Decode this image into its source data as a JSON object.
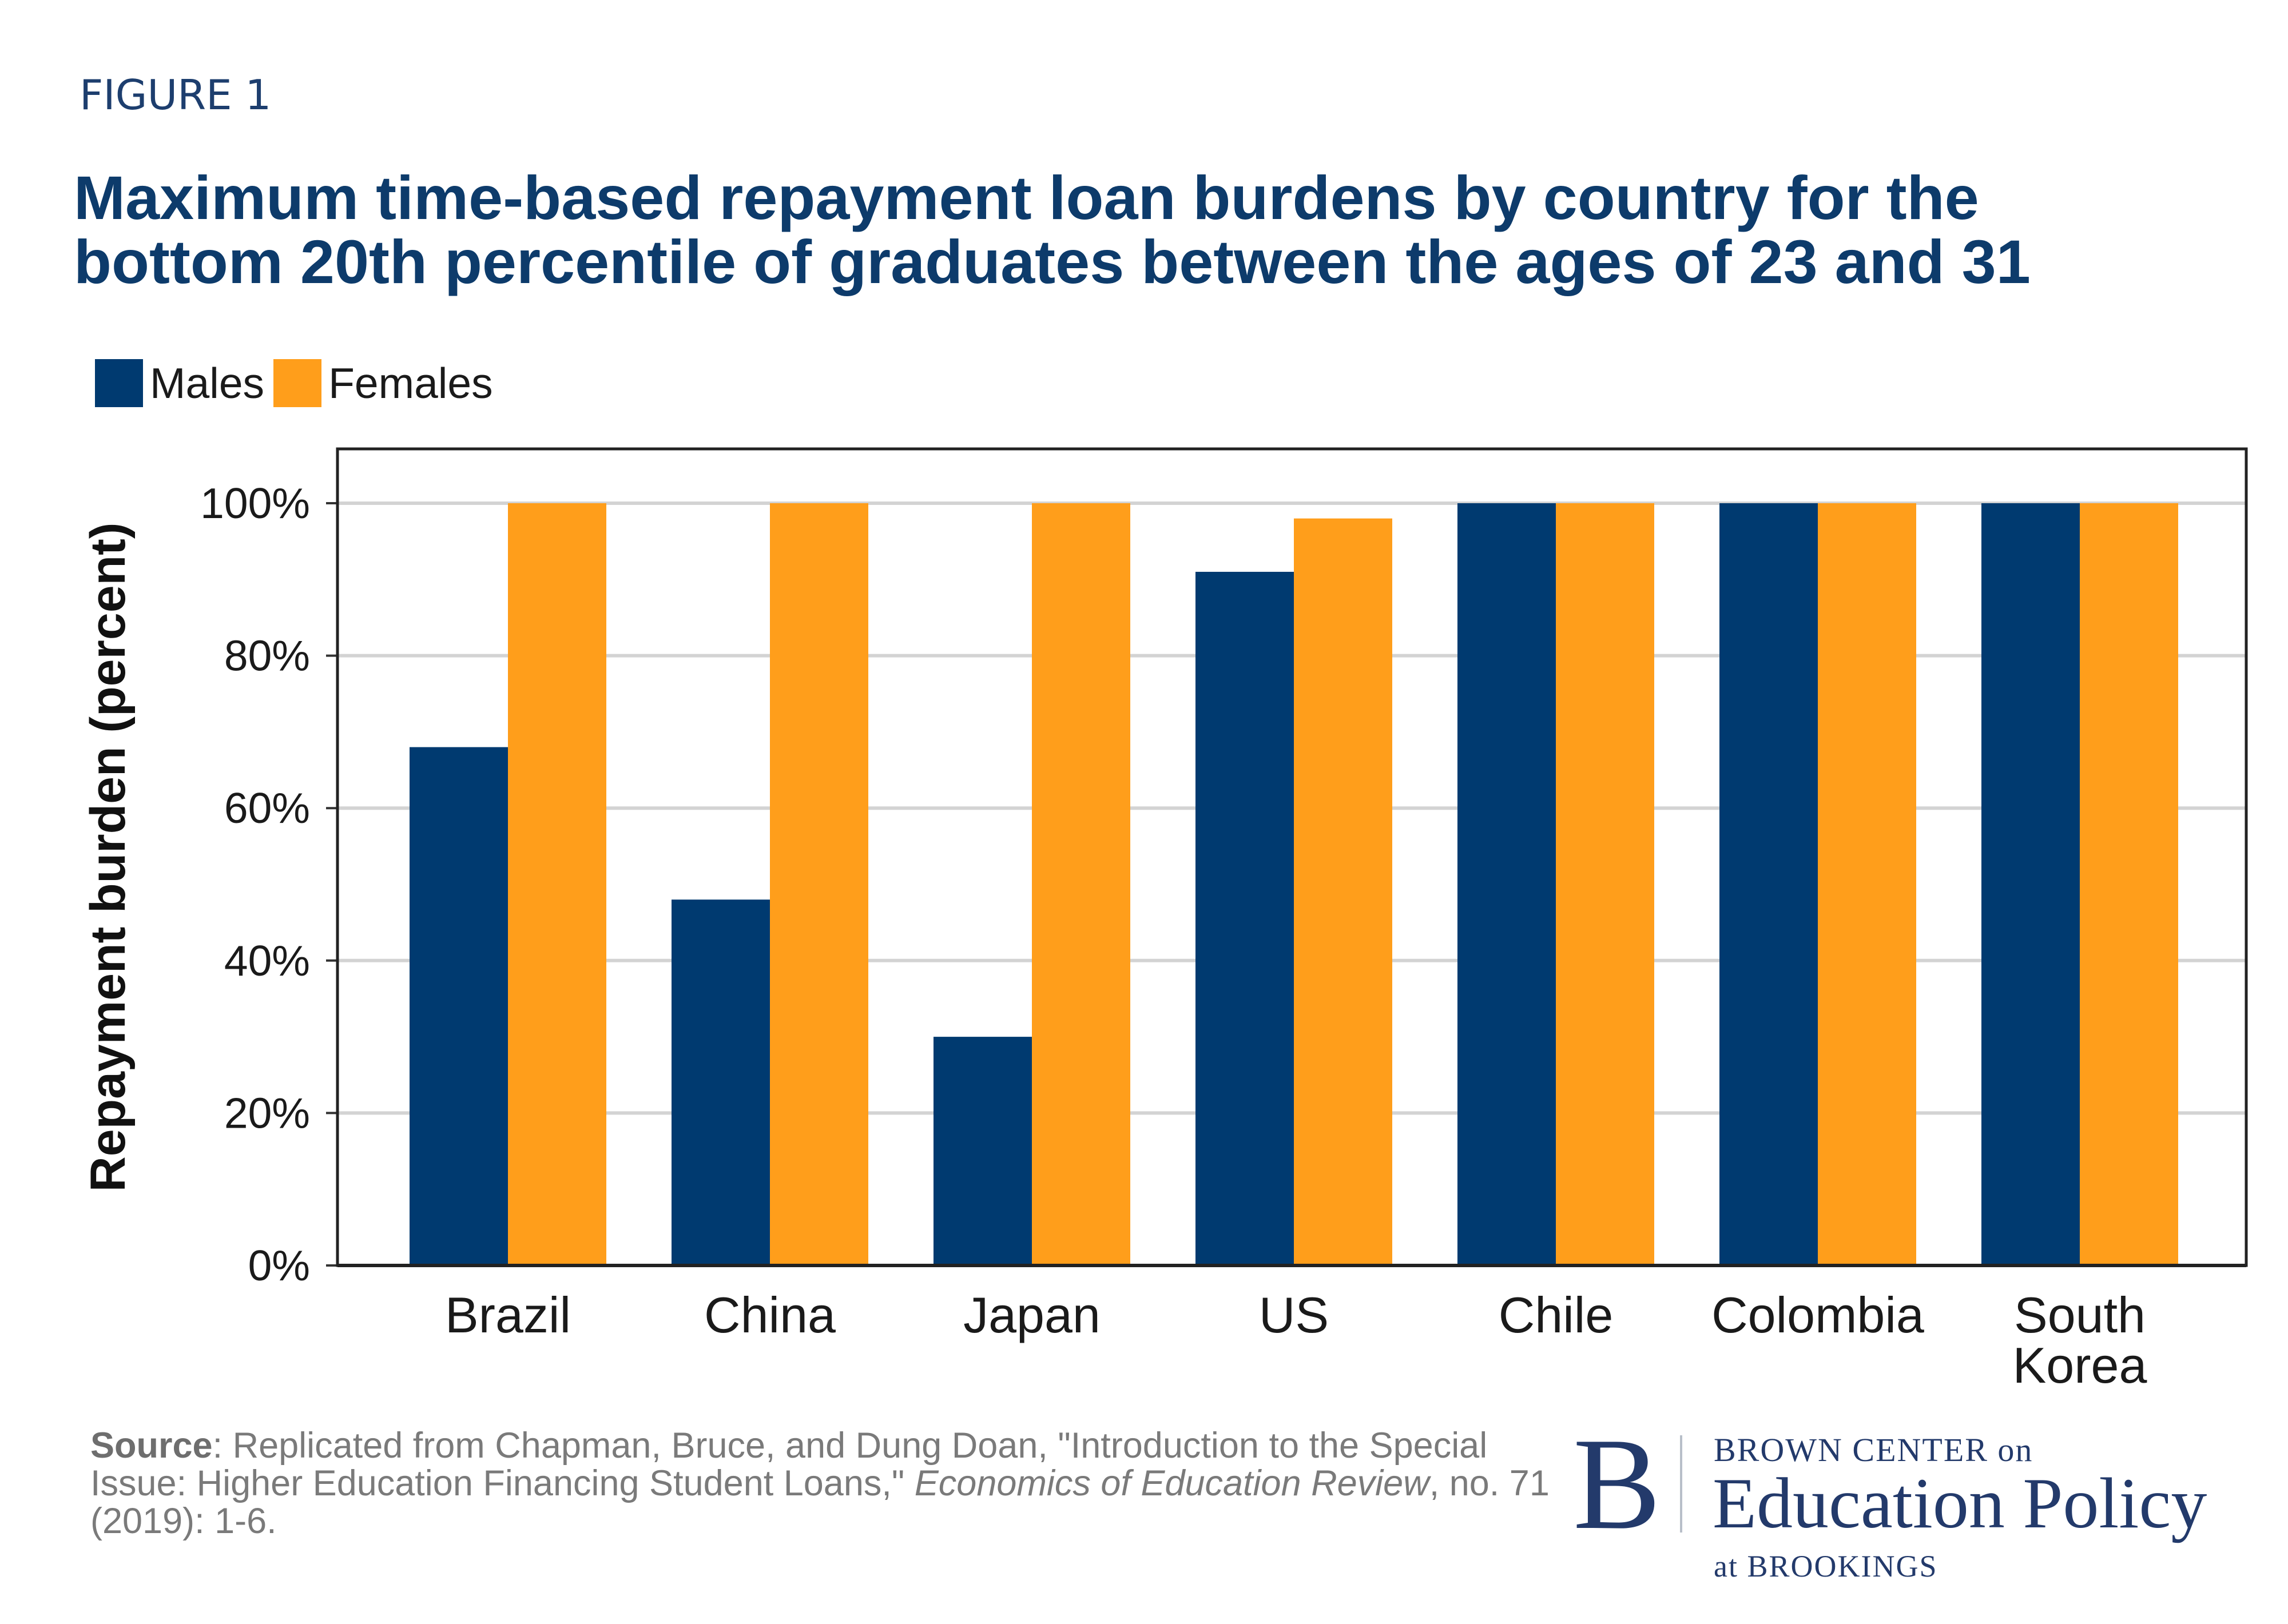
{
  "figure_label": "FIGURE 1",
  "colors": {
    "males": "#003a70",
    "females": "#ff9e1b",
    "title": "#0d3b6b",
    "grid": "#d3d3d3"
  },
  "legend": [
    "Males",
    "Females"
  ],
  "chart_data": {
    "type": "bar",
    "title_lines": [
      "Maximum time-based repayment loan burdens by country for the",
      "bottom 20th percentile of graduates between the ages of 23 and 31"
    ],
    "ylabel": "Repayment burden (percent)",
    "xlabel": "",
    "ylim": [
      0,
      100
    ],
    "yticks": [
      "0%",
      "20%",
      "40%",
      "60%",
      "80%",
      "100%"
    ],
    "grid": true,
    "legend_position": "top-left",
    "categories": [
      "Brazil",
      "China",
      "Japan",
      "US",
      "Chile",
      "Colombia",
      "South Korea"
    ],
    "series": [
      {
        "name": "Males",
        "values": [
          68,
          48,
          30,
          91,
          100,
          100,
          100
        ]
      },
      {
        "name": "Females",
        "values": [
          100,
          100,
          100,
          98,
          100,
          100,
          100
        ]
      }
    ]
  },
  "source": {
    "label": "Source",
    "text_before": ": Replicated from Chapman, Bruce, and Dung Doan, \"Introduction to the Special Issue: Higher Education Financing Student Loans,\" ",
    "journal": "Economics of Education Review",
    "text_after": ", no. 71 (2019): 1-6."
  },
  "logo": {
    "mark": "B",
    "line1": "BROWN CENTER on",
    "line2": "Education Policy",
    "line3": "at BROOKINGS"
  }
}
